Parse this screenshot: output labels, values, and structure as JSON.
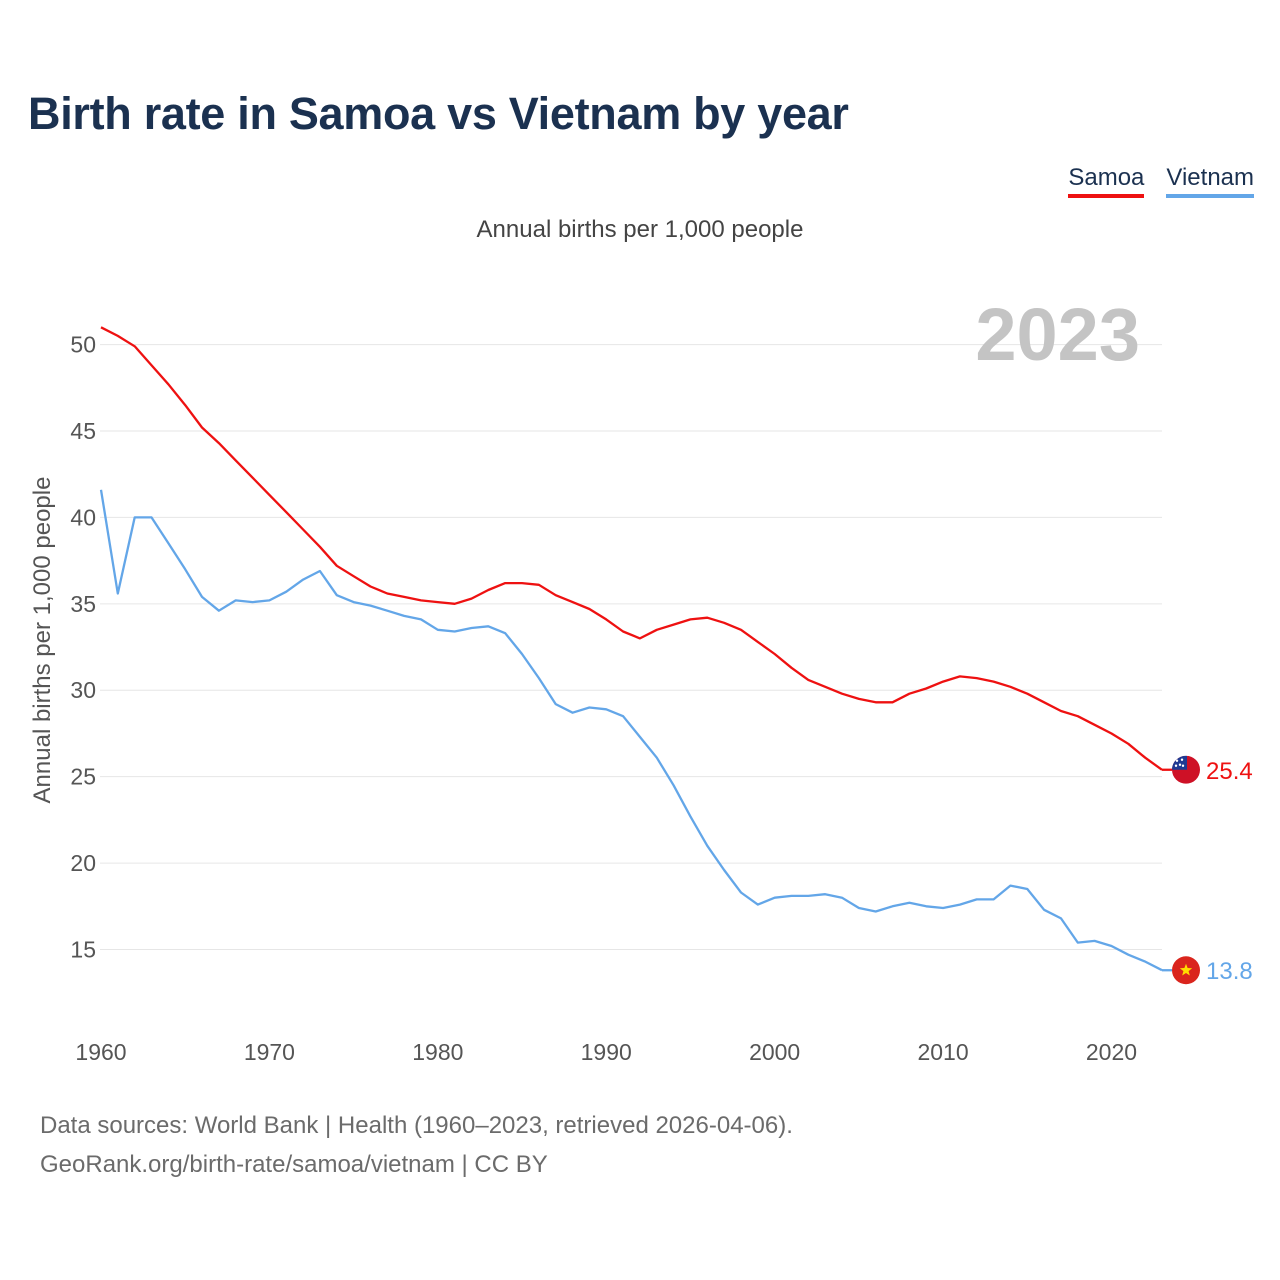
{
  "title": "Birth rate in Samoa vs Vietnam by year",
  "subtitle": "Annual births per 1,000 people",
  "legend": [
    {
      "label": "Samoa",
      "color": "#ee1111"
    },
    {
      "label": "Vietnam",
      "color": "#63a6e8"
    }
  ],
  "year_watermark": "2023",
  "source": {
    "line1": "Data sources: World Bank | Health (1960–2023, retrieved 2026-04-06).",
    "line2": "GeoRank.org/birth-rate/samoa/vietnam | CC BY"
  },
  "chart_data": {
    "type": "line",
    "title": "Birth rate in Samoa vs Vietnam by year",
    "xlabel": "",
    "ylabel": "Annual births per 1,000 people",
    "xlim": [
      1960,
      2023
    ],
    "ylim": [
      11.5,
      52
    ],
    "xticks": [
      1960,
      1970,
      1980,
      1990,
      2000,
      2010,
      2020
    ],
    "yticks": [
      15,
      20,
      25,
      30,
      35,
      40,
      45,
      50
    ],
    "grid": true,
    "legend_position": "top-right",
    "x": [
      1960,
      1961,
      1962,
      1963,
      1964,
      1965,
      1966,
      1967,
      1968,
      1969,
      1970,
      1971,
      1972,
      1973,
      1974,
      1975,
      1976,
      1977,
      1978,
      1979,
      1980,
      1981,
      1982,
      1983,
      1984,
      1985,
      1986,
      1987,
      1988,
      1989,
      1990,
      1991,
      1992,
      1993,
      1994,
      1995,
      1996,
      1997,
      1998,
      1999,
      2000,
      2001,
      2002,
      2003,
      2004,
      2005,
      2006,
      2007,
      2008,
      2009,
      2010,
      2011,
      2012,
      2013,
      2014,
      2015,
      2016,
      2017,
      2018,
      2019,
      2020,
      2021,
      2022,
      2023
    ],
    "series": [
      {
        "name": "Samoa",
        "color": "#ee1111",
        "end_label": "25.4",
        "flag": "samoa-flag-icon",
        "values": [
          51.0,
          50.5,
          49.9,
          48.8,
          47.7,
          46.5,
          45.2,
          44.3,
          43.3,
          42.3,
          41.3,
          40.3,
          39.3,
          38.3,
          37.2,
          36.6,
          36.0,
          35.6,
          35.4,
          35.2,
          35.1,
          35.0,
          35.3,
          35.8,
          36.2,
          36.2,
          36.1,
          35.5,
          35.1,
          34.7,
          34.1,
          33.4,
          33.0,
          33.5,
          33.8,
          34.1,
          34.2,
          33.9,
          33.5,
          32.8,
          32.1,
          31.3,
          30.6,
          30.2,
          29.8,
          29.5,
          29.3,
          29.3,
          29.8,
          30.1,
          30.5,
          30.8,
          30.7,
          30.5,
          30.2,
          29.8,
          29.3,
          28.8,
          28.5,
          28.0,
          27.5,
          26.9,
          26.1,
          25.4
        ]
      },
      {
        "name": "Vietnam",
        "color": "#63a6e8",
        "end_label": "13.8",
        "flag": "vietnam-flag-icon",
        "values": [
          41.6,
          35.6,
          40.0,
          40.0,
          38.5,
          37.0,
          35.4,
          34.6,
          35.2,
          35.1,
          35.2,
          35.7,
          36.4,
          36.9,
          35.5,
          35.1,
          34.9,
          34.6,
          34.3,
          34.1,
          33.5,
          33.4,
          33.6,
          33.7,
          33.3,
          32.1,
          30.7,
          29.2,
          28.7,
          29.0,
          28.9,
          28.5,
          27.3,
          26.1,
          24.5,
          22.7,
          21.0,
          19.6,
          18.3,
          17.6,
          18.0,
          18.1,
          18.1,
          18.2,
          18.0,
          17.4,
          17.2,
          17.5,
          17.7,
          17.5,
          17.4,
          17.6,
          17.9,
          17.9,
          18.7,
          18.5,
          17.3,
          16.8,
          15.4,
          15.5,
          15.2,
          14.7,
          14.3,
          13.8
        ]
      }
    ]
  }
}
